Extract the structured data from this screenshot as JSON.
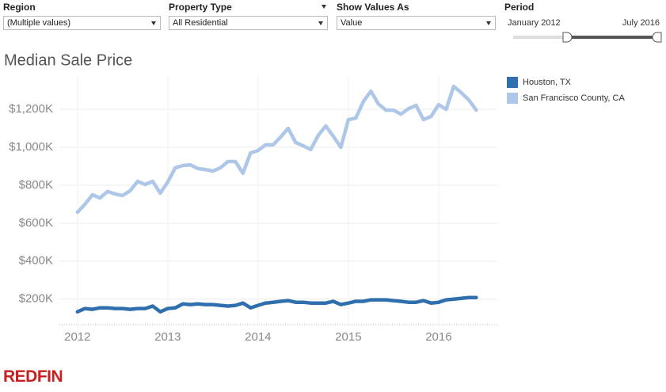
{
  "filters": [
    {
      "label": "Region",
      "value": "(Multiple values)"
    },
    {
      "label": "Property Type",
      "value": "All Residential"
    },
    {
      "label": "Show Values As",
      "value": "Value"
    }
  ],
  "period": {
    "label": "Period",
    "start": "January 2012",
    "end": "July 2016"
  },
  "brand": "REDFIN",
  "chart_data": {
    "type": "line",
    "title": "Median Sale Price",
    "x": [
      2012,
      2012.083,
      2012.167,
      2012.25,
      2012.333,
      2012.417,
      2012.5,
      2012.583,
      2012.667,
      2012.75,
      2012.833,
      2012.917,
      2013,
      2013.083,
      2013.167,
      2013.25,
      2013.333,
      2013.417,
      2013.5,
      2013.583,
      2013.667,
      2013.75,
      2013.833,
      2013.917,
      2014,
      2014.083,
      2014.167,
      2014.25,
      2014.333,
      2014.417,
      2014.5,
      2014.583,
      2014.667,
      2014.75,
      2014.833,
      2014.917,
      2015,
      2015.083,
      2015.167,
      2015.25,
      2015.333,
      2015.417,
      2015.5,
      2015.583,
      2015.667,
      2015.75,
      2015.833,
      2015.917,
      2016,
      2016.083,
      2016.167,
      2016.25,
      2016.333,
      2016.417
    ],
    "xlim": [
      2011.8,
      2016.65
    ],
    "xticks": [
      2012,
      2013,
      2014,
      2015,
      2016
    ],
    "ylim": [
      65000,
      1380000
    ],
    "yticks": [
      {
        "value": 200000,
        "label": "$200K"
      },
      {
        "value": 400000,
        "label": "$400K"
      },
      {
        "value": 600000,
        "label": "$600K"
      },
      {
        "value": 800000,
        "label": "$800K"
      },
      {
        "value": 1000000,
        "label": "$1,000K"
      },
      {
        "value": 1200000,
        "label": "$1,200K"
      }
    ],
    "grid": true,
    "series": [
      {
        "name": "Houston, TX",
        "color": "#2f6fad",
        "values": [
          133000,
          150000,
          146000,
          154000,
          154000,
          150000,
          150000,
          146000,
          150000,
          150000,
          163000,
          133000,
          150000,
          154000,
          175000,
          171000,
          175000,
          171000,
          171000,
          167000,
          163000,
          167000,
          179000,
          154000,
          167000,
          179000,
          183000,
          188000,
          192000,
          183000,
          183000,
          179000,
          179000,
          179000,
          188000,
          171000,
          179000,
          188000,
          188000,
          196000,
          196000,
          196000,
          192000,
          188000,
          183000,
          183000,
          192000,
          179000,
          183000,
          196000,
          200000,
          204000,
          208000,
          208000
        ]
      },
      {
        "name": "San Francisco County, CA",
        "color": "#aec7e8",
        "values": [
          658000,
          700000,
          750000,
          733000,
          767000,
          754000,
          746000,
          771000,
          821000,
          804000,
          821000,
          758000,
          817000,
          892000,
          904000,
          908000,
          888000,
          883000,
          875000,
          892000,
          925000,
          925000,
          863000,
          971000,
          983000,
          1013000,
          1013000,
          1054000,
          1100000,
          1025000,
          1008000,
          988000,
          1063000,
          1113000,
          1058000,
          1000000,
          1146000,
          1154000,
          1242000,
          1296000,
          1229000,
          1196000,
          1196000,
          1175000,
          1204000,
          1221000,
          1146000,
          1163000,
          1225000,
          1200000,
          1321000,
          1288000,
          1250000,
          1196000
        ]
      }
    ]
  }
}
